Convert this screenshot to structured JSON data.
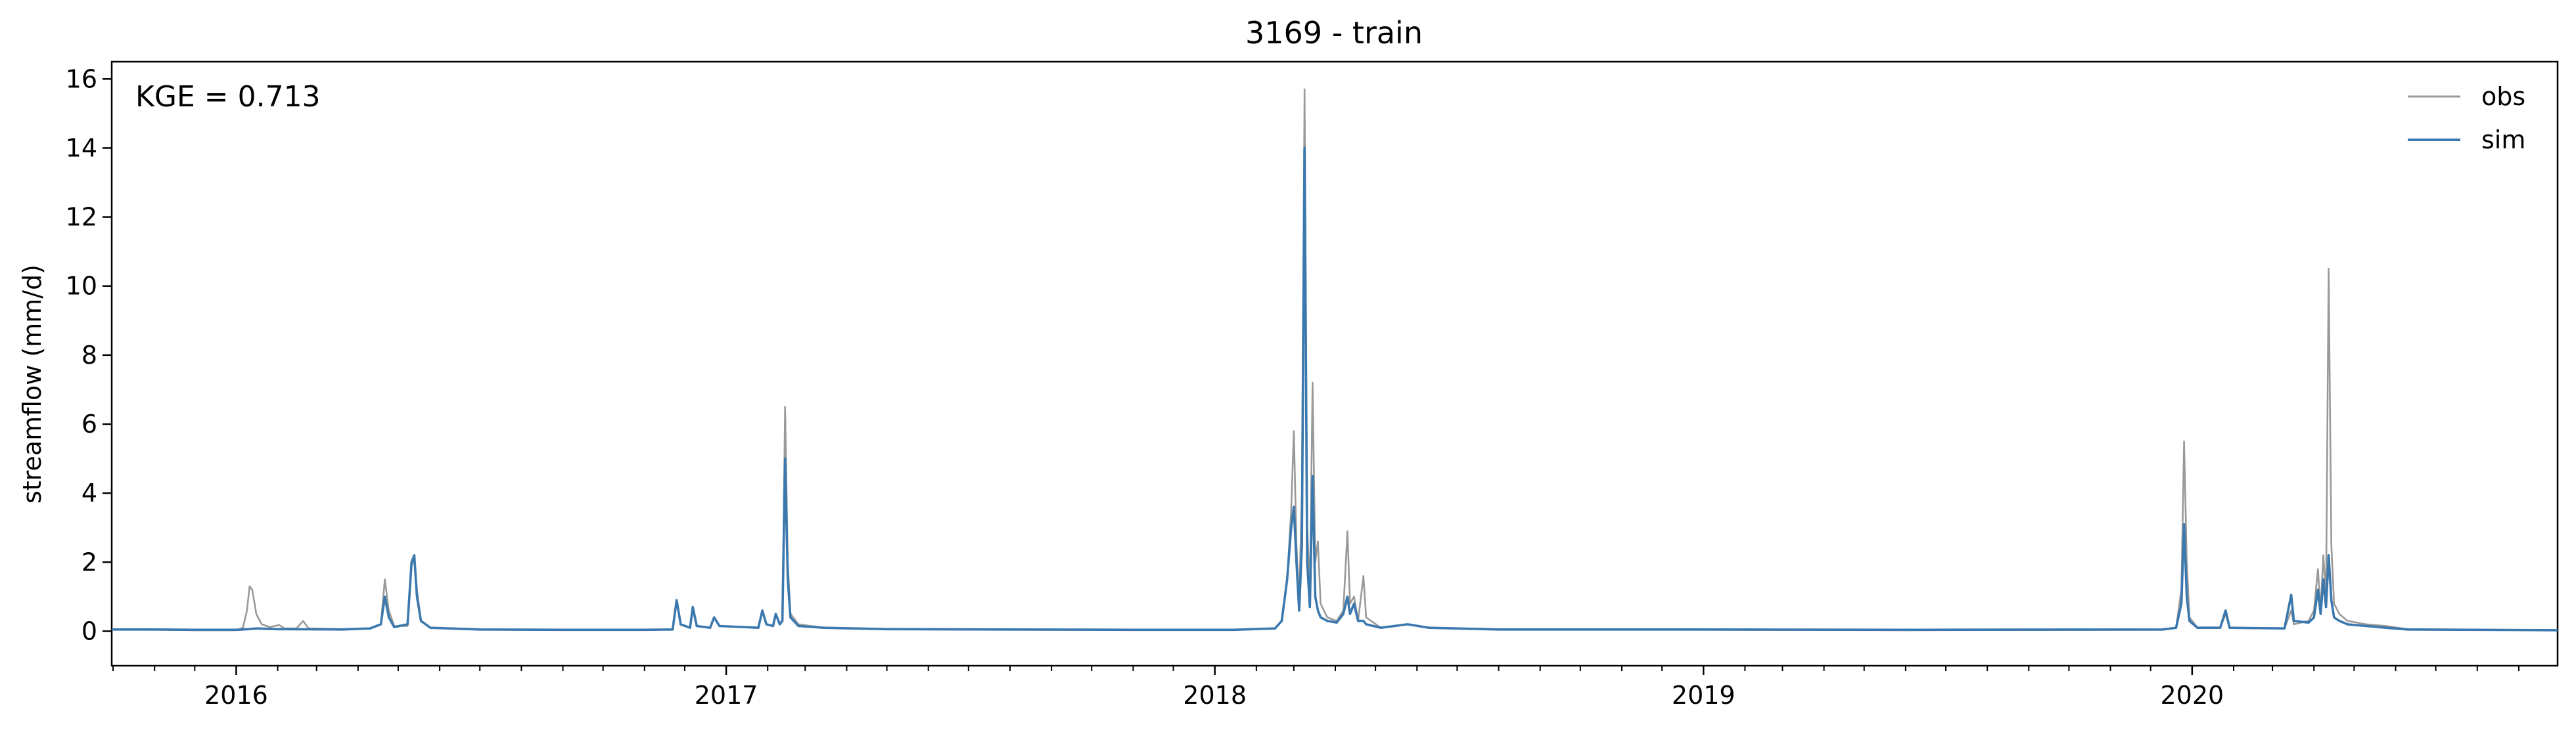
{
  "chart_data": {
    "type": "line",
    "title": "3169 - train",
    "xlabel": "",
    "ylabel": "streamflow (mm/d)",
    "annotation": "KGE = 0.713",
    "xlim": [
      "2015-09-30",
      "2020-09-30"
    ],
    "ylim": [
      -1,
      16.5
    ],
    "x_ticks": [
      "2016",
      "2017",
      "2018",
      "2019",
      "2020"
    ],
    "y_ticks": [
      "0",
      "2",
      "4",
      "6",
      "8",
      "10",
      "12",
      "14",
      "16"
    ],
    "legend": {
      "location": "top-right",
      "entries": [
        "obs",
        "sim"
      ]
    },
    "grid": false,
    "series": [
      {
        "name": "obs",
        "color": "#999999",
        "points": [
          [
            "2015-09-30",
            0.05
          ],
          [
            "2015-11-01",
            0.04
          ],
          [
            "2015-12-01",
            0.03
          ],
          [
            "2016-01-01",
            0.03
          ],
          [
            "2016-01-06",
            0.1
          ],
          [
            "2016-01-09",
            0.6
          ],
          [
            "2016-01-11",
            1.3
          ],
          [
            "2016-01-13",
            1.2
          ],
          [
            "2016-01-16",
            0.5
          ],
          [
            "2016-01-20",
            0.2
          ],
          [
            "2016-01-26",
            0.12
          ],
          [
            "2016-02-02",
            0.18
          ],
          [
            "2016-02-06",
            0.08
          ],
          [
            "2016-02-15",
            0.08
          ],
          [
            "2016-02-20",
            0.3
          ],
          [
            "2016-02-24",
            0.08
          ],
          [
            "2016-03-20",
            0.06
          ],
          [
            "2016-04-10",
            0.08
          ],
          [
            "2016-04-18",
            0.2
          ],
          [
            "2016-04-21",
            1.5
          ],
          [
            "2016-04-24",
            0.6
          ],
          [
            "2016-04-28",
            0.15
          ],
          [
            "2016-05-08",
            0.15
          ],
          [
            "2016-05-11",
            1.9
          ],
          [
            "2016-05-13",
            2.1
          ],
          [
            "2016-05-15",
            1.2
          ],
          [
            "2016-05-18",
            0.3
          ],
          [
            "2016-05-25",
            0.1
          ],
          [
            "2016-07-01",
            0.05
          ],
          [
            "2016-09-01",
            0.04
          ],
          [
            "2016-11-01",
            0.04
          ],
          [
            "2016-11-22",
            0.05
          ],
          [
            "2016-11-25",
            0.9
          ],
          [
            "2016-11-28",
            0.2
          ],
          [
            "2016-12-05",
            0.1
          ],
          [
            "2016-12-07",
            0.7
          ],
          [
            "2016-12-10",
            0.15
          ],
          [
            "2016-12-20",
            0.1
          ],
          [
            "2016-12-23",
            0.4
          ],
          [
            "2016-12-27",
            0.15
          ],
          [
            "2017-01-25",
            0.1
          ],
          [
            "2017-01-28",
            0.6
          ],
          [
            "2017-01-31",
            0.2
          ],
          [
            "2017-02-05",
            0.15
          ],
          [
            "2017-02-07",
            0.5
          ],
          [
            "2017-02-10",
            0.2
          ],
          [
            "2017-02-12",
            0.3
          ],
          [
            "2017-02-14",
            6.5
          ],
          [
            "2017-02-16",
            2.0
          ],
          [
            "2017-02-18",
            0.5
          ],
          [
            "2017-02-24",
            0.2
          ],
          [
            "2017-03-15",
            0.1
          ],
          [
            "2017-05-01",
            0.06
          ],
          [
            "2017-08-01",
            0.04
          ],
          [
            "2017-11-01",
            0.04
          ],
          [
            "2018-01-15",
            0.04
          ],
          [
            "2018-02-15",
            0.08
          ],
          [
            "2018-02-20",
            0.3
          ],
          [
            "2018-02-24",
            1.5
          ],
          [
            "2018-02-27",
            3.5
          ],
          [
            "2018-03-01",
            5.8
          ],
          [
            "2018-03-03",
            2.5
          ],
          [
            "2018-03-05",
            0.8
          ],
          [
            "2018-03-07",
            4.0
          ],
          [
            "2018-03-09",
            15.7
          ],
          [
            "2018-03-11",
            3.0
          ],
          [
            "2018-03-13",
            1.2
          ],
          [
            "2018-03-15",
            7.2
          ],
          [
            "2018-03-17",
            2.0
          ],
          [
            "2018-03-19",
            2.6
          ],
          [
            "2018-03-21",
            0.8
          ],
          [
            "2018-03-26",
            0.4
          ],
          [
            "2018-04-02",
            0.3
          ],
          [
            "2018-04-07",
            0.6
          ],
          [
            "2018-04-10",
            2.9
          ],
          [
            "2018-04-12",
            0.8
          ],
          [
            "2018-04-15",
            1.0
          ],
          [
            "2018-04-18",
            0.3
          ],
          [
            "2018-04-22",
            1.6
          ],
          [
            "2018-04-24",
            0.4
          ],
          [
            "2018-05-05",
            0.1
          ],
          [
            "2018-05-25",
            0.2
          ],
          [
            "2018-06-10",
            0.1
          ],
          [
            "2018-08-01",
            0.05
          ],
          [
            "2019-01-01",
            0.04
          ],
          [
            "2019-06-01",
            0.03
          ],
          [
            "2019-12-10",
            0.04
          ],
          [
            "2019-12-20",
            0.1
          ],
          [
            "2019-12-24",
            1.2
          ],
          [
            "2019-12-26",
            5.5
          ],
          [
            "2019-12-28",
            2.0
          ],
          [
            "2019-12-30",
            0.4
          ],
          [
            "2020-01-05",
            0.1
          ],
          [
            "2020-01-22",
            0.1
          ],
          [
            "2020-01-26",
            0.5
          ],
          [
            "2020-01-29",
            0.1
          ],
          [
            "2020-03-10",
            0.08
          ],
          [
            "2020-03-15",
            0.6
          ],
          [
            "2020-03-17",
            0.2
          ],
          [
            "2020-03-28",
            0.3
          ],
          [
            "2020-04-01",
            0.6
          ],
          [
            "2020-04-04",
            1.8
          ],
          [
            "2020-04-06",
            0.6
          ],
          [
            "2020-04-08",
            2.2
          ],
          [
            "2020-04-10",
            1.0
          ],
          [
            "2020-04-12",
            10.5
          ],
          [
            "2020-04-14",
            2.5
          ],
          [
            "2020-04-16",
            0.8
          ],
          [
            "2020-04-20",
            0.5
          ],
          [
            "2020-04-26",
            0.3
          ],
          [
            "2020-05-10",
            0.2
          ],
          [
            "2020-05-25",
            0.15
          ],
          [
            "2020-06-10",
            0.06
          ],
          [
            "2020-09-30",
            0.03
          ]
        ]
      },
      {
        "name": "sim",
        "color": "#3a78ae",
        "points": [
          [
            "2015-09-30",
            0.05
          ],
          [
            "2015-11-01",
            0.05
          ],
          [
            "2015-12-01",
            0.04
          ],
          [
            "2016-01-01",
            0.04
          ],
          [
            "2016-01-10",
            0.06
          ],
          [
            "2016-01-16",
            0.08
          ],
          [
            "2016-02-01",
            0.06
          ],
          [
            "2016-03-20",
            0.05
          ],
          [
            "2016-04-10",
            0.08
          ],
          [
            "2016-04-18",
            0.2
          ],
          [
            "2016-04-21",
            1.0
          ],
          [
            "2016-04-24",
            0.4
          ],
          [
            "2016-04-28",
            0.12
          ],
          [
            "2016-05-08",
            0.2
          ],
          [
            "2016-05-11",
            2.0
          ],
          [
            "2016-05-13",
            2.2
          ],
          [
            "2016-05-15",
            1.0
          ],
          [
            "2016-05-18",
            0.3
          ],
          [
            "2016-05-25",
            0.1
          ],
          [
            "2016-07-01",
            0.05
          ],
          [
            "2016-09-01",
            0.04
          ],
          [
            "2016-11-01",
            0.04
          ],
          [
            "2016-11-22",
            0.05
          ],
          [
            "2016-11-25",
            0.9
          ],
          [
            "2016-11-28",
            0.2
          ],
          [
            "2016-12-05",
            0.1
          ],
          [
            "2016-12-07",
            0.7
          ],
          [
            "2016-12-10",
            0.15
          ],
          [
            "2016-12-20",
            0.1
          ],
          [
            "2016-12-23",
            0.4
          ],
          [
            "2016-12-27",
            0.15
          ],
          [
            "2017-01-25",
            0.1
          ],
          [
            "2017-01-28",
            0.6
          ],
          [
            "2017-01-31",
            0.2
          ],
          [
            "2017-02-05",
            0.15
          ],
          [
            "2017-02-07",
            0.5
          ],
          [
            "2017-02-10",
            0.2
          ],
          [
            "2017-02-12",
            0.3
          ],
          [
            "2017-02-14",
            5.0
          ],
          [
            "2017-02-16",
            1.5
          ],
          [
            "2017-02-18",
            0.4
          ],
          [
            "2017-02-24",
            0.15
          ],
          [
            "2017-03-15",
            0.1
          ],
          [
            "2017-05-01",
            0.06
          ],
          [
            "2017-08-01",
            0.05
          ],
          [
            "2017-11-01",
            0.04
          ],
          [
            "2018-01-15",
            0.04
          ],
          [
            "2018-02-15",
            0.08
          ],
          [
            "2018-02-20",
            0.3
          ],
          [
            "2018-02-24",
            1.5
          ],
          [
            "2018-02-27",
            3.0
          ],
          [
            "2018-03-01",
            3.6
          ],
          [
            "2018-03-03",
            2.0
          ],
          [
            "2018-03-05",
            0.6
          ],
          [
            "2018-03-07",
            2.5
          ],
          [
            "2018-03-09",
            14.0
          ],
          [
            "2018-03-11",
            2.0
          ],
          [
            "2018-03-13",
            0.7
          ],
          [
            "2018-03-15",
            4.5
          ],
          [
            "2018-03-17",
            1.0
          ],
          [
            "2018-03-19",
            0.6
          ],
          [
            "2018-03-21",
            0.4
          ],
          [
            "2018-03-26",
            0.3
          ],
          [
            "2018-04-02",
            0.25
          ],
          [
            "2018-04-07",
            0.5
          ],
          [
            "2018-04-10",
            1.0
          ],
          [
            "2018-04-12",
            0.5
          ],
          [
            "2018-04-15",
            0.8
          ],
          [
            "2018-04-18",
            0.3
          ],
          [
            "2018-04-22",
            0.3
          ],
          [
            "2018-04-24",
            0.2
          ],
          [
            "2018-05-05",
            0.1
          ],
          [
            "2018-05-25",
            0.2
          ],
          [
            "2018-06-10",
            0.1
          ],
          [
            "2018-08-01",
            0.05
          ],
          [
            "2019-01-01",
            0.05
          ],
          [
            "2019-06-01",
            0.04
          ],
          [
            "2019-12-10",
            0.05
          ],
          [
            "2019-12-20",
            0.1
          ],
          [
            "2019-12-24",
            0.8
          ],
          [
            "2019-12-26",
            3.1
          ],
          [
            "2019-12-28",
            1.0
          ],
          [
            "2019-12-30",
            0.3
          ],
          [
            "2020-01-05",
            0.1
          ],
          [
            "2020-01-22",
            0.1
          ],
          [
            "2020-01-26",
            0.6
          ],
          [
            "2020-01-29",
            0.1
          ],
          [
            "2020-03-10",
            0.08
          ],
          [
            "2020-03-15",
            1.05
          ],
          [
            "2020-03-17",
            0.3
          ],
          [
            "2020-03-28",
            0.25
          ],
          [
            "2020-04-01",
            0.4
          ],
          [
            "2020-04-04",
            1.2
          ],
          [
            "2020-04-06",
            0.5
          ],
          [
            "2020-04-08",
            1.5
          ],
          [
            "2020-04-10",
            0.7
          ],
          [
            "2020-04-12",
            2.2
          ],
          [
            "2020-04-14",
            0.9
          ],
          [
            "2020-04-16",
            0.4
          ],
          [
            "2020-04-20",
            0.3
          ],
          [
            "2020-04-26",
            0.2
          ],
          [
            "2020-05-10",
            0.15
          ],
          [
            "2020-05-25",
            0.1
          ],
          [
            "2020-06-10",
            0.05
          ],
          [
            "2020-09-30",
            0.03
          ]
        ]
      }
    ]
  }
}
